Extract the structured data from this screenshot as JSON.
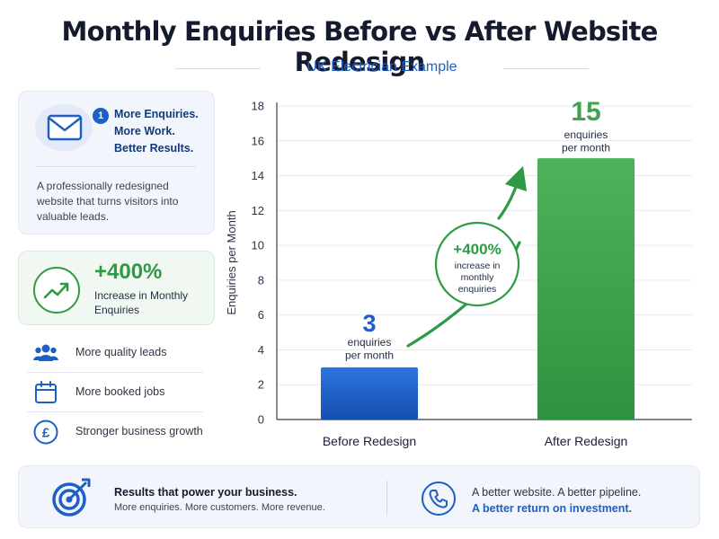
{
  "title": "Monthly Enquiries Before vs After Website Redesign",
  "subtitle": "UK Electrician Example",
  "enquiries_card": {
    "badge": "1",
    "lines": [
      "More Enquiries.",
      "More Work.",
      "Better Results."
    ],
    "body": "A professionally redesigned website that turns visitors into valuable leads.",
    "icon": "envelope-icon"
  },
  "increase_card": {
    "value": "+400%",
    "label": "Increase in Monthly Enquiries",
    "icon": "trend-up-icon"
  },
  "benefits": [
    {
      "icon": "people-icon",
      "label": "More quality leads"
    },
    {
      "icon": "calendar-icon",
      "label": "More booked jobs"
    },
    {
      "icon": "pound-icon",
      "label": "Stronger business growth"
    }
  ],
  "footer": {
    "left_title": "Results that power your business.",
    "left_sub": "More enquiries. More customers. More revenue.",
    "right_line1": "A better website. A better pipeline.",
    "right_line2": "A better return on investment.",
    "left_icon": "target-icon",
    "right_icon": "phone-icon"
  },
  "chart_data": {
    "type": "bar",
    "categories": [
      "Before Redesign",
      "After Redesign"
    ],
    "values": [
      3,
      15
    ],
    "ylabel": "Enquiries per Month",
    "ylim": [
      0,
      18
    ],
    "yticks": [
      0,
      2,
      4,
      6,
      8,
      10,
      12,
      14,
      16,
      18
    ],
    "grid": true,
    "bar_value_labels": [
      "3",
      "15"
    ],
    "bar_unit_labels": [
      "enquiries\nper month",
      "enquiries\nper month"
    ],
    "bar_colors": [
      "#1d5fc4",
      "#3fa34d"
    ],
    "annotation": {
      "value": "+400%",
      "text": "increase in\nmonthly\nenquiries"
    }
  },
  "colors": {
    "blue": "#1d5fc4",
    "green": "#2e9b44",
    "dark": "#151b2e"
  }
}
